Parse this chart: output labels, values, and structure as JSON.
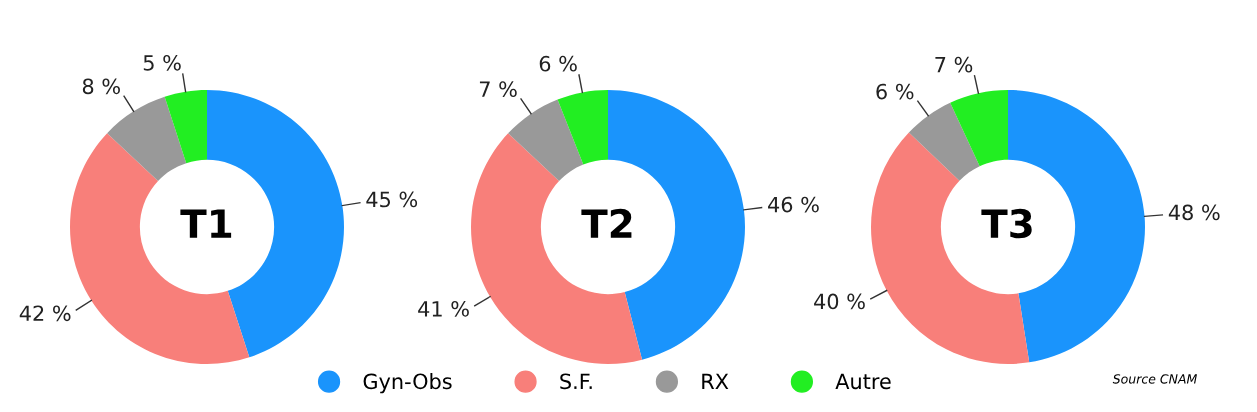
{
  "chart_data": [
    {
      "type": "donut",
      "title": "T1",
      "categories": [
        "Gyn-Obs",
        "S.F.",
        "RX",
        "Autre"
      ],
      "values": [
        45,
        42,
        8,
        5
      ],
      "value_labels": [
        "45 %",
        "42 %",
        "8 %",
        "5 %"
      ],
      "colors": [
        "#1a94fc",
        "#f87f7a",
        "#999999",
        "#22ee22"
      ],
      "legend": "bottom"
    },
    {
      "type": "donut",
      "title": "T2",
      "categories": [
        null,
        null,
        null,
        null
      ],
      "values": [
        46,
        41,
        7,
        6
      ],
      "value_labels": [
        "46 %",
        "41 %",
        "7 %",
        "6 %"
      ],
      "colors": [
        "#1a94fc",
        "#f87f7a",
        "#999999",
        "#22ee22"
      ]
    },
    {
      "type": "donut",
      "title": "T3",
      "categories": [
        null,
        null,
        null,
        null
      ],
      "values": [
        48,
        40,
        6,
        7
      ],
      "value_labels": [
        "48 %",
        "40 %",
        "6 %",
        "7 %"
      ],
      "colors": [
        "#1a94fc",
        "#f87f7a",
        "#999999",
        "#22ee22"
      ],
      "annotations": [
        "Source CNAM"
      ]
    }
  ]
}
